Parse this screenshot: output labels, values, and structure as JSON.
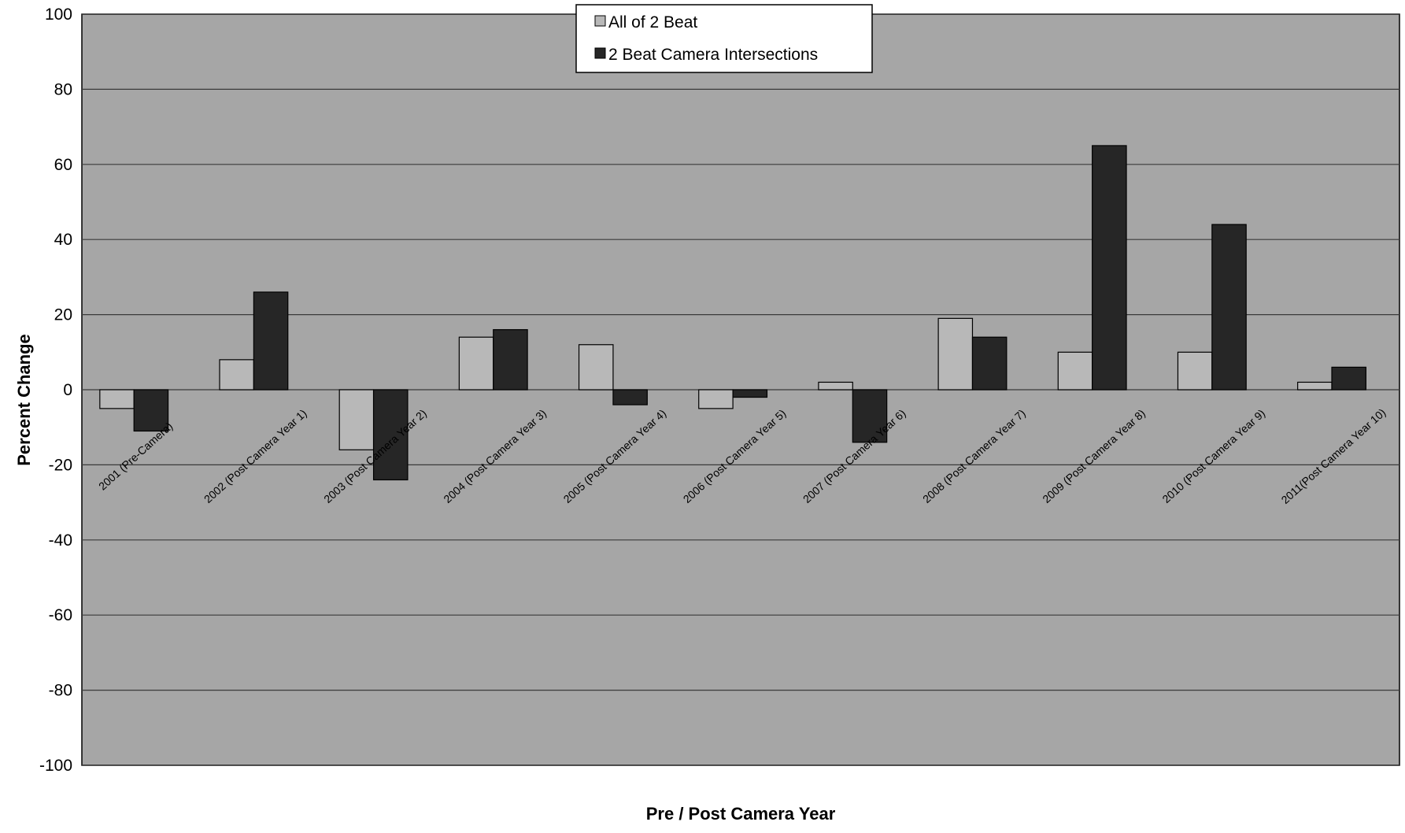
{
  "chart_data": {
    "type": "bar",
    "title": "",
    "xlabel": "Pre / Post Camera Year",
    "ylabel": "Percent Change",
    "ylim": [
      -100,
      100
    ],
    "yticks": [
      100,
      80,
      60,
      40,
      20,
      0,
      -20,
      -40,
      -60,
      -80,
      -100
    ],
    "grid": true,
    "legend_position": "top-center",
    "categories": [
      "2001 (Pre-Camera)",
      "2002 (Post Camera Year 1)",
      "2003 (Post Camera Year 2)",
      "2004 (Post Camera Year 3)",
      "2005 (Post Camera Year 4)",
      "2006 (Post Camera Year 5)",
      "2007 (Post Camera Year 6)",
      "2008 (Post Camera Year 7)",
      "2009 (Post Camera Year 8)",
      "2010 (Post Camera Year 9)",
      "2011(Post Camera Year 10)"
    ],
    "series": [
      {
        "name": "All of 2 Beat",
        "color": "#b8b8b8",
        "values": [
          -5,
          8,
          -16,
          14,
          12,
          -5,
          2,
          19,
          10,
          10,
          2
        ]
      },
      {
        "name": "2 Beat Camera Intersections",
        "color": "#262626",
        "values": [
          -11,
          26,
          -24,
          16,
          -4,
          -2,
          -14,
          14,
          65,
          44,
          6
        ]
      }
    ],
    "colors": {
      "plot_background": "#a6a6a6",
      "gridline": "#3a3a3a"
    }
  }
}
